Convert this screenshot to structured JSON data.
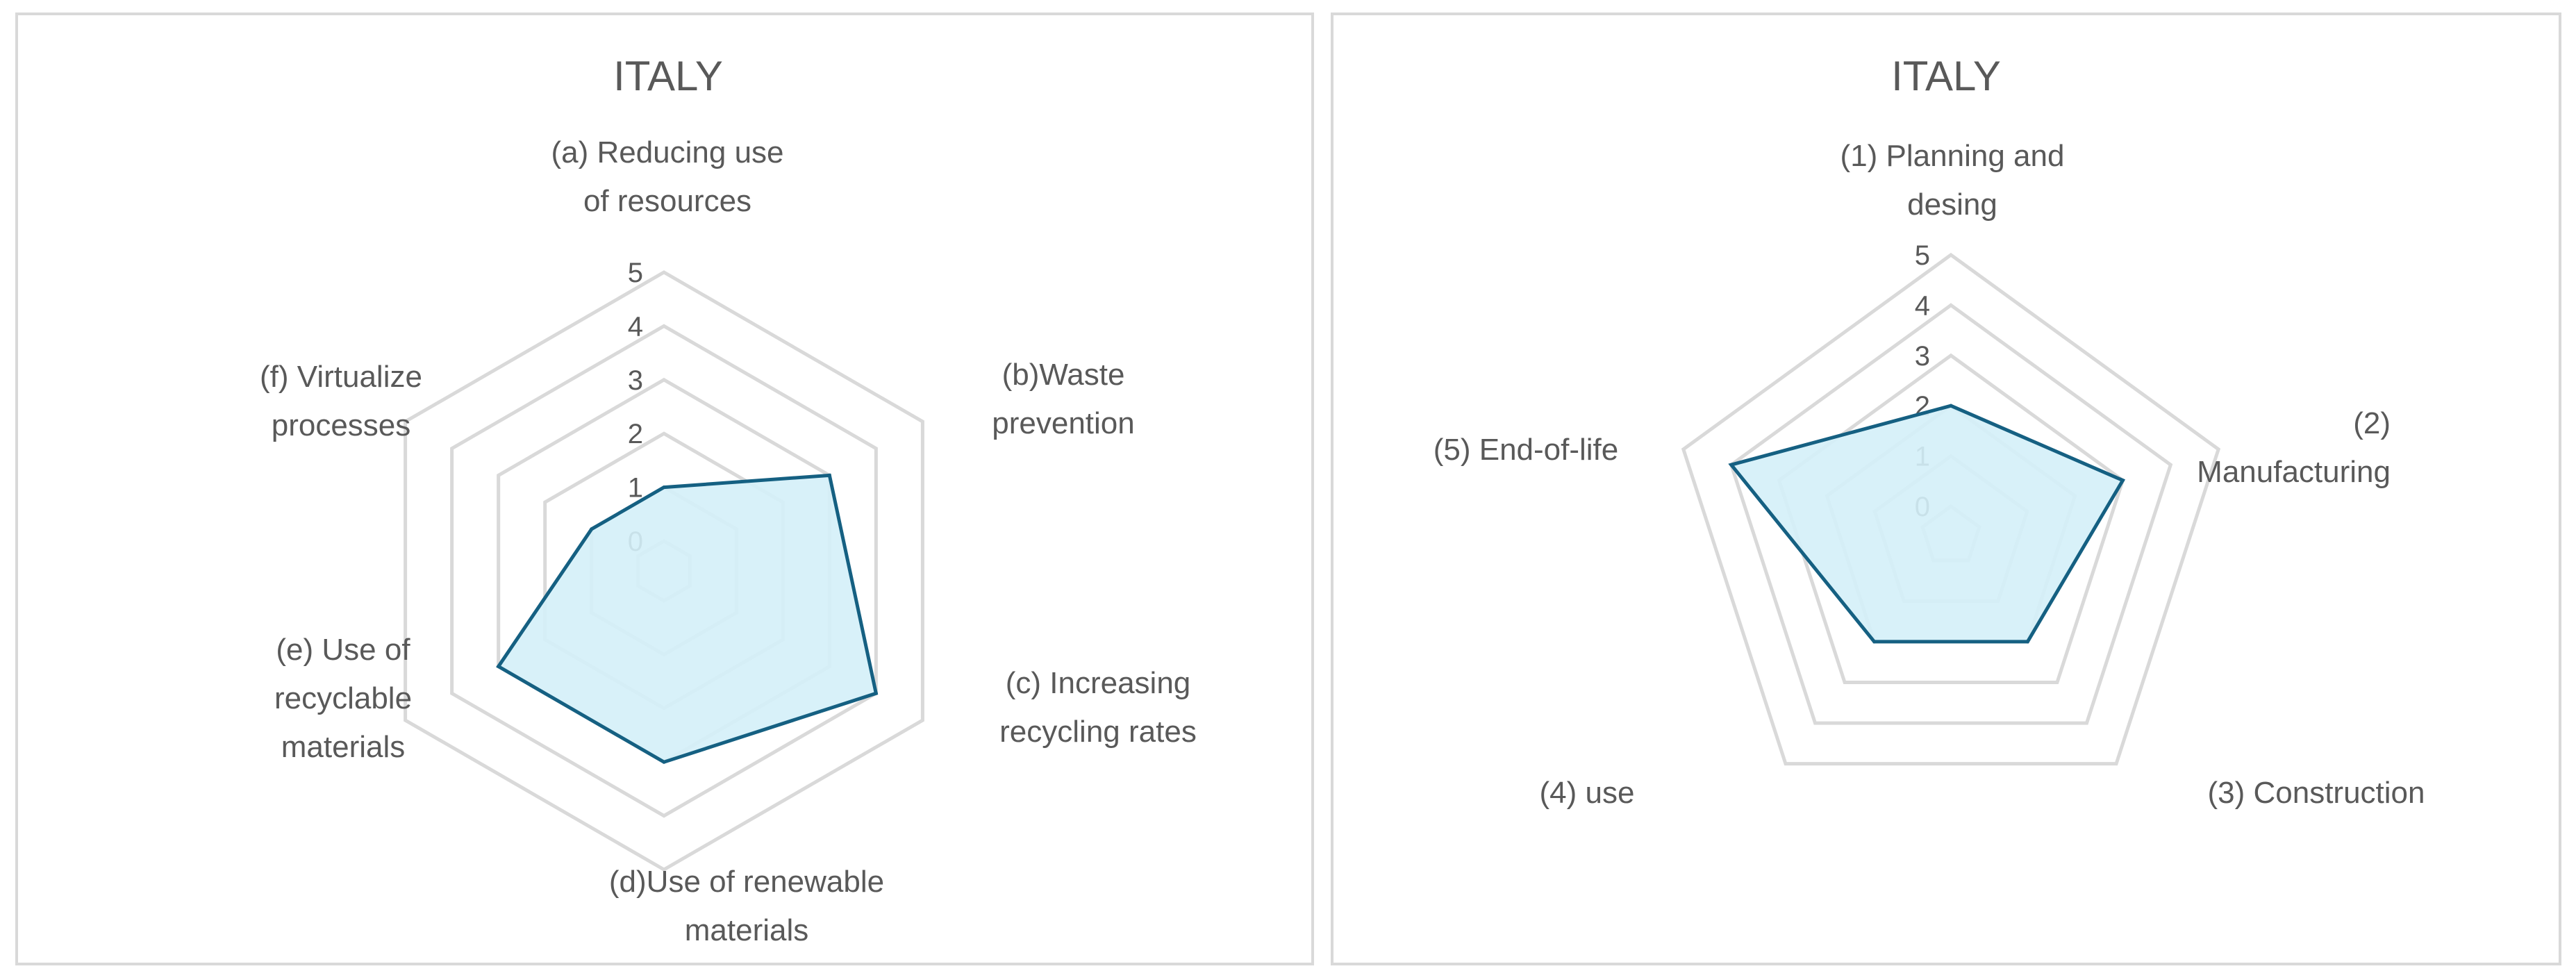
{
  "chart_data": [
    {
      "type": "radar",
      "title": "ITALY",
      "categories": [
        [
          "(a) Reducing use",
          "of resources"
        ],
        [
          "(b)Waste",
          "prevention"
        ],
        [
          "(c) Increasing",
          "recycling rates"
        ],
        [
          "(d)Use of renewable",
          "materials"
        ],
        [
          "(e) Use of",
          "recyclable",
          "materials"
        ],
        [
          "(f) Virtualize",
          "processes"
        ]
      ],
      "series": [
        {
          "values": [
            1,
            3,
            4,
            3,
            3,
            1
          ]
        }
      ],
      "rlim": [
        0,
        5
      ],
      "ticks": [
        "0",
        "1",
        "2",
        "3",
        "4",
        "5"
      ],
      "grid": true,
      "colors": {
        "line": "#156082",
        "fill": "#d4eff8",
        "grid": "#d9d9d9"
      }
    },
    {
      "type": "radar",
      "title": "ITALY",
      "categories": [
        [
          "(1) Planning and",
          "desing"
        ],
        [
          "(2)",
          "Manufacturing"
        ],
        [
          "(3) Construction"
        ],
        [
          "(4) use"
        ],
        [
          "(5) End-of-life"
        ]
      ],
      "series": [
        {
          "values": [
            2,
            3,
            2,
            2,
            4
          ]
        }
      ],
      "rlim": [
        0,
        5
      ],
      "ticks": [
        "0",
        "1",
        "2",
        "3",
        "4",
        "5"
      ],
      "grid": true,
      "colors": {
        "line": "#156082",
        "fill": "#d4eff8",
        "grid": "#d9d9d9"
      }
    }
  ]
}
